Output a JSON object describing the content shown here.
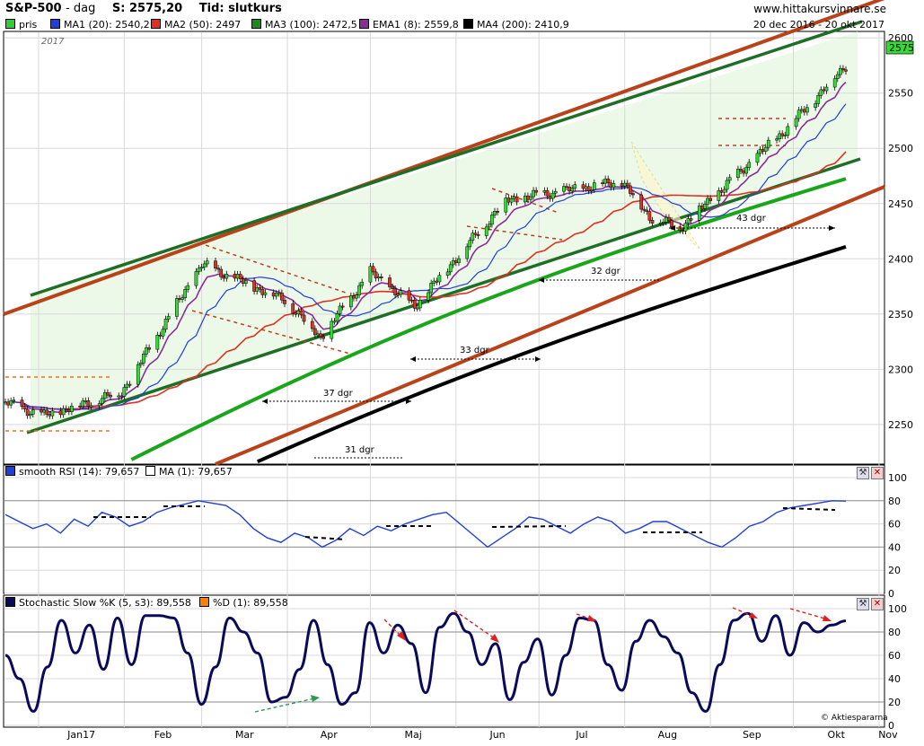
{
  "header": {
    "symbol": "S&P-500",
    "period": "dag",
    "close_label": "S: 2575,20",
    "type_label": "Tid: slutkurs",
    "site": "www.hittakursvinnare.se",
    "date_range": "20 dec 2016 - 20 okt 2017",
    "year_label": "2017",
    "credit": "© Aktiespararna",
    "last_price_tag": "2575"
  },
  "legend_main": [
    {
      "label": "pris",
      "color": "#33cc33"
    },
    {
      "label": "MA1 (20): 2540,2",
      "color": "#1f3fd8"
    },
    {
      "label": "MA2 (50): 2497",
      "color": "#e03020"
    },
    {
      "label": "MA3 (100): 2472,5",
      "color": "#1a8c1a"
    },
    {
      "label": "EMA1 (8): 2559,8",
      "color": "#8b2c9a"
    },
    {
      "label": "MA4 (200): 2410,9",
      "color": "#000000"
    }
  ],
  "legend_rsi": [
    {
      "label": "smooth RSI (14): 79,657",
      "color": "#1f3fd8"
    },
    {
      "label": "MA (1): 79,657",
      "color": "#ffffff"
    }
  ],
  "legend_stoch": [
    {
      "label": "Stochastic Slow %K (5, s3): 89,558",
      "color": "#0a0a5a"
    },
    {
      "label": "%D (1): 89,558",
      "color": "#ff7f00"
    }
  ],
  "x_axis": {
    "months": [
      "Jan17",
      "Feb",
      "Mar",
      "Apr",
      "Maj",
      "Jun",
      "Jul",
      "Aug",
      "Sep",
      "Okt",
      "Nov"
    ]
  },
  "annotations": [
    {
      "text": "43 dgr"
    },
    {
      "text": "32 dgr"
    },
    {
      "text": "33 dgr"
    },
    {
      "text": "37 dgr"
    },
    {
      "text": "31 dgr"
    }
  ],
  "chart_data": [
    {
      "type": "line",
      "title": "S&P-500 - dag",
      "ylim": [
        2215,
        2605
      ],
      "y_ticks": [
        2250,
        2300,
        2350,
        2400,
        2450,
        2500,
        2550,
        2600
      ],
      "key_closes": [
        {
          "date": "2016-12-20",
          "close": 2270
        },
        {
          "date": "2017-01-03",
          "close": 2258
        },
        {
          "date": "2017-01-31",
          "close": 2279
        },
        {
          "date": "2017-03-01",
          "close": 2395
        },
        {
          "date": "2017-03-31",
          "close": 2363
        },
        {
          "date": "2017-04-13",
          "close": 2329
        },
        {
          "date": "2017-05-01",
          "close": 2388
        },
        {
          "date": "2017-05-17",
          "close": 2357
        },
        {
          "date": "2017-06-19",
          "close": 2453
        },
        {
          "date": "2017-07-31",
          "close": 2470
        },
        {
          "date": "2017-08-10",
          "close": 2438
        },
        {
          "date": "2017-08-21",
          "close": 2428
        },
        {
          "date": "2017-09-29",
          "close": 2519
        },
        {
          "date": "2017-10-20",
          "close": 2575
        }
      ],
      "series": [
        {
          "name": "MA1 (20)",
          "last": 2540.2
        },
        {
          "name": "MA2 (50)",
          "last": 2497
        },
        {
          "name": "MA3 (100)",
          "last": 2472.5
        },
        {
          "name": "EMA1 (8)",
          "last": 2559.8
        },
        {
          "name": "MA4 (200)",
          "last": 2410.9
        }
      ]
    },
    {
      "type": "line",
      "title": "smooth RSI (14)",
      "ylim": [
        0,
        100
      ],
      "y_ticks": [
        0,
        20,
        40,
        60,
        80,
        100
      ],
      "series": [
        {
          "name": "smooth RSI (14)",
          "last": 79.657,
          "y": [
            68,
            62,
            56,
            60,
            52,
            64,
            58,
            70,
            66,
            58,
            62,
            70,
            74,
            77,
            80,
            78,
            76,
            68,
            56,
            48,
            44,
            52,
            48,
            40,
            46,
            56,
            50,
            58,
            54,
            60,
            64,
            68,
            70,
            60,
            50,
            40,
            48,
            56,
            66,
            64,
            58,
            52,
            60,
            66,
            62,
            52,
            56,
            62,
            62,
            56,
            50,
            44,
            40,
            48,
            58,
            62,
            70,
            74,
            76,
            78,
            80,
            79.657
          ]
        },
        {
          "name": "MA (1)",
          "last": 79.657
        }
      ]
    },
    {
      "type": "line",
      "title": "Stochastic Slow %K (5, s3)",
      "ylim": [
        0,
        100
      ],
      "y_ticks": [
        0,
        20,
        40,
        60,
        80,
        100
      ],
      "series": [
        {
          "name": "Stochastic Slow %K (5, s3)",
          "last": 89.558,
          "y": [
            60,
            40,
            12,
            50,
            90,
            62,
            86,
            48,
            92,
            52,
            94,
            94,
            92,
            62,
            18,
            50,
            92,
            80,
            62,
            20,
            24,
            48,
            90,
            52,
            18,
            28,
            88,
            62,
            86,
            70,
            28,
            84,
            96,
            80,
            52,
            70,
            22,
            54,
            74,
            26,
            60,
            92,
            90,
            52,
            30,
            72,
            90,
            76,
            62,
            28,
            12,
            52,
            90,
            96,
            72,
            94,
            60,
            88,
            80,
            86,
            89.558
          ]
        },
        {
          "name": "%D (1)",
          "last": 89.558
        }
      ]
    }
  ]
}
